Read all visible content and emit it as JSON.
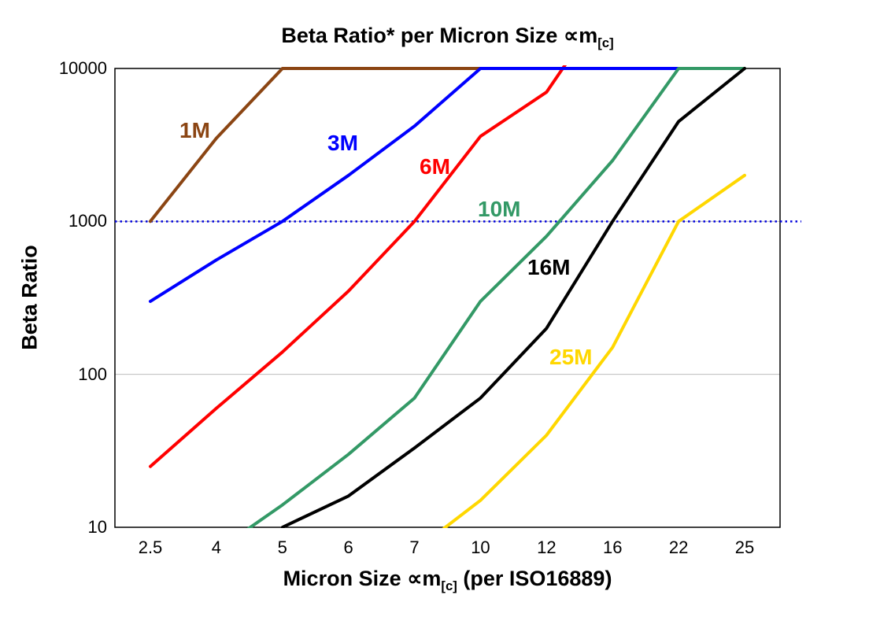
{
  "title": {
    "pre": "Beta Ratio* per Micron Size ",
    "symbol": "∝m",
    "sub": "[c]"
  },
  "x_axis_title": {
    "pre": "Micron Size ∝m",
    "sub": "[c]",
    "post": " (per ISO16889)"
  },
  "chart_data": {
    "type": "line",
    "title": "Beta Ratio* per Micron Size ∝m[c]",
    "xlabel": "Micron Size ∝m[c] (per ISO16889)",
    "ylabel": "Beta Ratio",
    "x_categories": [
      "2.5",
      "4",
      "5",
      "6",
      "7",
      "10",
      "12",
      "16",
      "22",
      "25"
    ],
    "y_scale": "log",
    "y_ticks": [
      10,
      100,
      1000,
      10000
    ],
    "ylim": [
      10,
      10000
    ],
    "grid": "horizontal-decades",
    "note": "Series values above 10000 or below 10 are clipped at the plot edges",
    "reference_line": {
      "value": 1000,
      "color": "#0000DD",
      "style": "dotted"
    },
    "series": [
      {
        "name": "1M",
        "color": "#8B4513",
        "values": [
          1000,
          3500,
          10000,
          10000,
          10000,
          10000,
          null,
          null,
          null,
          null
        ]
      },
      {
        "name": "6M",
        "color": "#FF0000",
        "values": [
          25,
          60,
          140,
          350,
          1000,
          3600,
          7000,
          30000,
          null,
          null
        ]
      },
      {
        "name": "3M",
        "color": "#0000FF",
        "values": [
          300,
          560,
          1000,
          2000,
          4200,
          10000,
          10000,
          10000,
          10000,
          null
        ]
      },
      {
        "name": "10M",
        "color": "#339966",
        "values": [
          null,
          7,
          14,
          30,
          70,
          300,
          800,
          2500,
          10000,
          10000
        ]
      },
      {
        "name": "16M",
        "color": "#000000",
        "values": [
          null,
          null,
          10,
          16,
          33,
          70,
          200,
          1000,
          4500,
          10000
        ]
      },
      {
        "name": "25M",
        "color": "#FFD700",
        "values": [
          null,
          null,
          null,
          null,
          7,
          15,
          40,
          150,
          1000,
          2000
        ]
      }
    ]
  }
}
